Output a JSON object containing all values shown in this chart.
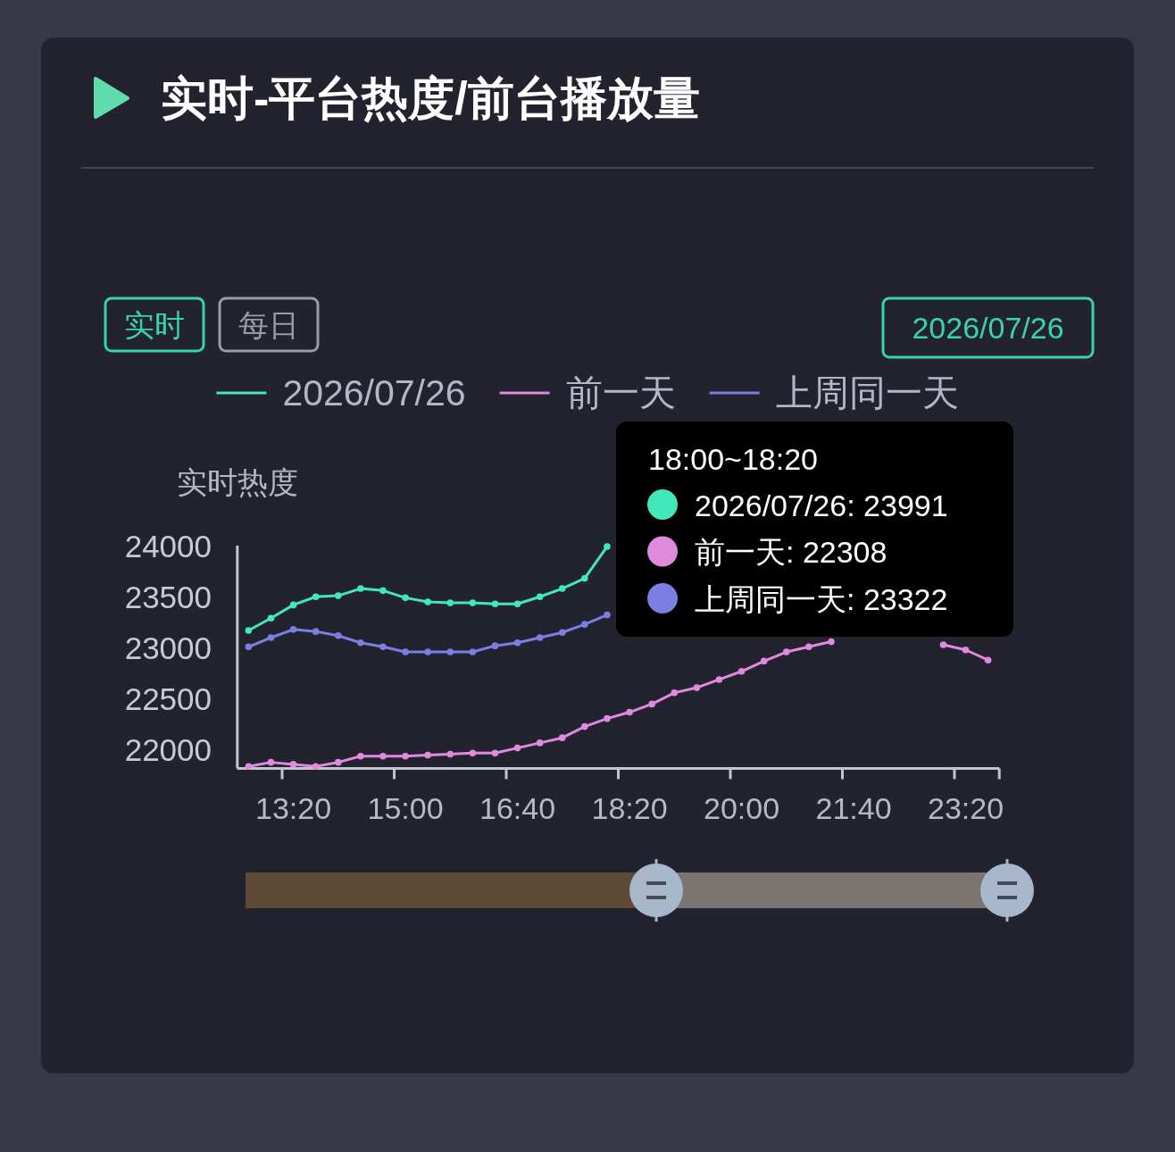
{
  "chart_data": {
    "type": "line",
    "title": "实时-平台热度/前台播放量",
    "ylabel": "实时热度",
    "categories": [
      null,
      null,
      "13:20",
      null,
      null,
      null,
      null,
      "15:00",
      null,
      null,
      null,
      null,
      "16:40",
      null,
      null,
      null,
      null,
      "18:20",
      null,
      null,
      null,
      null,
      "20:00",
      null,
      null,
      null,
      null,
      "21:40",
      null,
      null,
      null,
      null,
      "23:20",
      null
    ],
    "series": [
      {
        "name": "2026/07/26",
        "color": "#42e8bc",
        "values": [
          23170,
          23290,
          23420,
          23500,
          23510,
          23580,
          23560,
          23490,
          23450,
          23440,
          23440,
          23430,
          23430,
          23500,
          23580,
          23680,
          23991,
          null,
          null,
          null,
          null,
          null,
          null,
          null,
          null,
          null,
          null,
          null,
          null,
          null,
          null,
          null,
          null,
          null
        ]
      },
      {
        "name": "前一天",
        "color": "#e08ade",
        "values": [
          21840,
          21880,
          21860,
          21840,
          21880,
          21940,
          21940,
          21940,
          21950,
          21960,
          21970,
          21970,
          22020,
          22070,
          22120,
          22230,
          22308,
          22370,
          22450,
          22560,
          22610,
          22690,
          22770,
          22870,
          22960,
          23010,
          23060,
          null,
          null,
          null,
          null,
          23030,
          22980,
          22880
        ]
      },
      {
        "name": "上周同一天",
        "color": "#7b7ee3",
        "values": [
          23010,
          23100,
          23180,
          23160,
          23120,
          23050,
          23010,
          22960,
          22960,
          22960,
          22960,
          23020,
          23050,
          23100,
          23150,
          23230,
          23322,
          null,
          null,
          null,
          null,
          null,
          null,
          null,
          null,
          null,
          null,
          null,
          null,
          null,
          null,
          null,
          null,
          null
        ]
      }
    ],
    "ylim": [
      21820,
      24000
    ],
    "yticks": [
      22000,
      22500,
      23000,
      23500,
      24000
    ],
    "legend": "top",
    "marker": "circle",
    "annotations": [
      "实时",
      "每日",
      "2026/07/26",
      "18:00~18:20",
      "2026/07/26: 23991",
      "前一天: 22308",
      "上周同一天: 23322"
    ]
  }
}
